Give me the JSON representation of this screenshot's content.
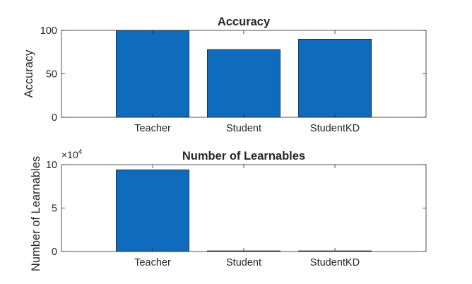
{
  "chart_data": [
    {
      "type": "bar",
      "title": "Accuracy",
      "xlabel": "",
      "ylabel": "Accuracy",
      "categories": [
        "Teacher",
        "Student",
        "StudentKD"
      ],
      "values": [
        100,
        78,
        90
      ],
      "ylim": [
        0,
        100
      ],
      "yticks": [
        0,
        50,
        100
      ],
      "xlim": [
        0,
        4
      ],
      "grid": false,
      "bar_color": "#0F6BBE"
    },
    {
      "type": "bar",
      "title": "Number of Learnables",
      "xlabel": "",
      "ylabel": "Number of Learnables",
      "categories": [
        "Teacher",
        "Student",
        "StudentKD"
      ],
      "values": [
        94000,
        800,
        800
      ],
      "ylim": [
        0,
        100000
      ],
      "yticks": [
        0,
        5,
        10
      ],
      "y_exponent_label": "×10",
      "y_exponent": "4",
      "xlim": [
        0,
        4
      ],
      "grid": false,
      "bar_color": "#0F6BBE"
    }
  ]
}
